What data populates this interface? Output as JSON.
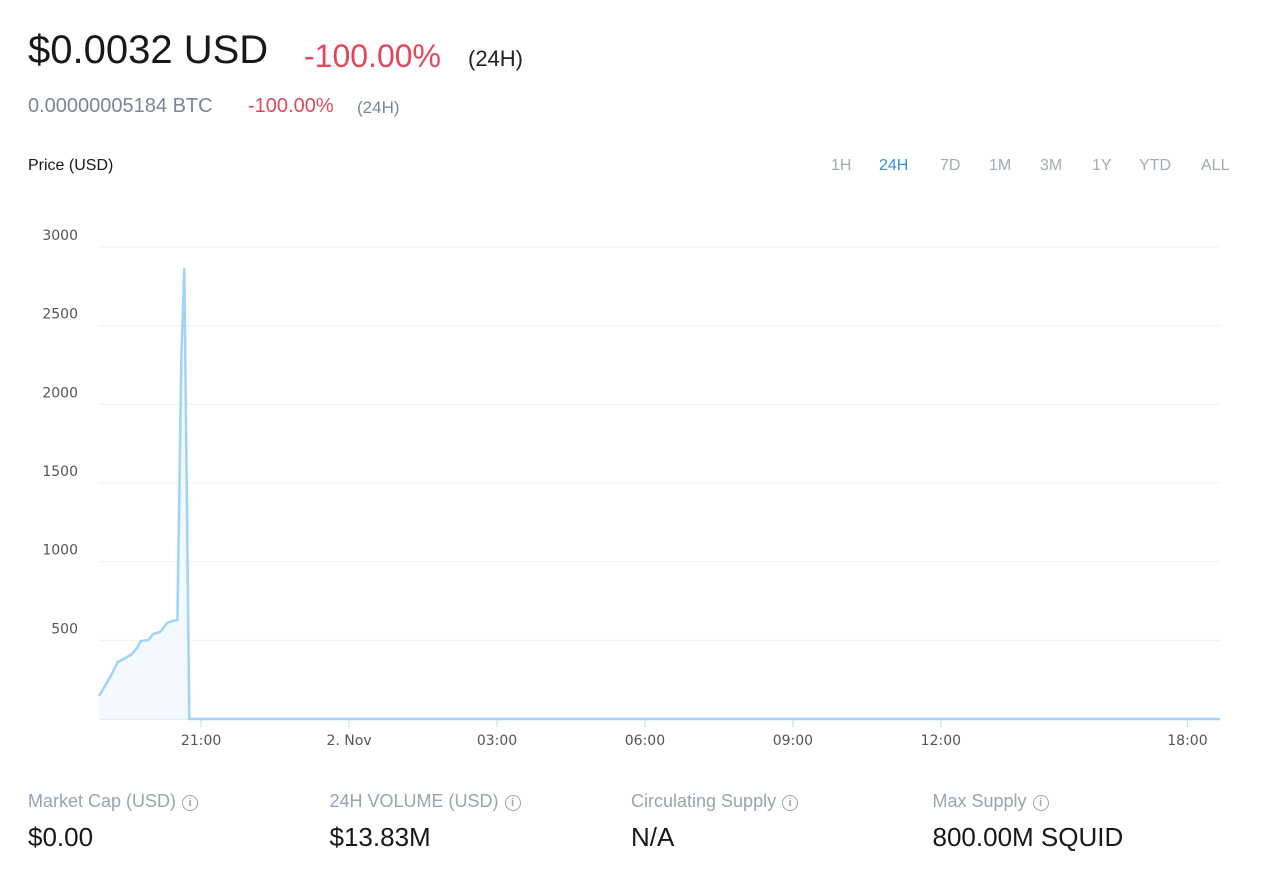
{
  "price": {
    "usd": "$0.0032 USD",
    "usd_change": "-100.00%",
    "usd_period": "(24H)",
    "btc": "0.00000005184 BTC",
    "btc_change": "-100.00%",
    "btc_period": "(24H)"
  },
  "periods": {
    "options": [
      "1H",
      "24H",
      "7D",
      "1M",
      "3M",
      "1Y",
      "YTD",
      "ALL"
    ],
    "active": "24H"
  },
  "chart_data": {
    "type": "line",
    "y_label": "Price (USD)",
    "color": "#9fd3f7",
    "area_color": "#f3f9fe",
    "x": [
      18.93,
      19.05,
      19.19,
      19.31,
      19.43,
      19.6,
      19.7,
      19.78,
      19.93,
      20.03,
      20.17,
      20.31,
      20.41,
      20.52,
      20.6,
      20.66,
      20.76,
      41.66
    ],
    "values": [
      146,
      210,
      286,
      362,
      381,
      413,
      451,
      496,
      502,
      540,
      553,
      610,
      623,
      629,
      2314,
      2861,
      0,
      0
    ],
    "xlim": [
      18.93,
      41.66
    ],
    "xticks": [
      {
        "value": 21,
        "label": "21:00"
      },
      {
        "value": 24,
        "label": "2. Nov"
      },
      {
        "value": 27,
        "label": "03:00"
      },
      {
        "value": 30,
        "label": "06:00"
      },
      {
        "value": 33,
        "label": "09:00"
      },
      {
        "value": 36,
        "label": "12:00"
      },
      {
        "value": 41,
        "label": "18:00"
      }
    ],
    "ylim": [
      0,
      3000
    ],
    "yticks": [
      500,
      1000,
      1500,
      2000,
      2500,
      3000
    ],
    "grid": true
  },
  "stats": [
    {
      "label": "Market Cap (USD)",
      "value": "$0.00"
    },
    {
      "label": "24H VOLUME (USD)",
      "value": "$13.83M"
    },
    {
      "label": "Circulating Supply",
      "value": "N/A"
    },
    {
      "label": "Max Supply",
      "value": "800.00M SQUID"
    }
  ]
}
